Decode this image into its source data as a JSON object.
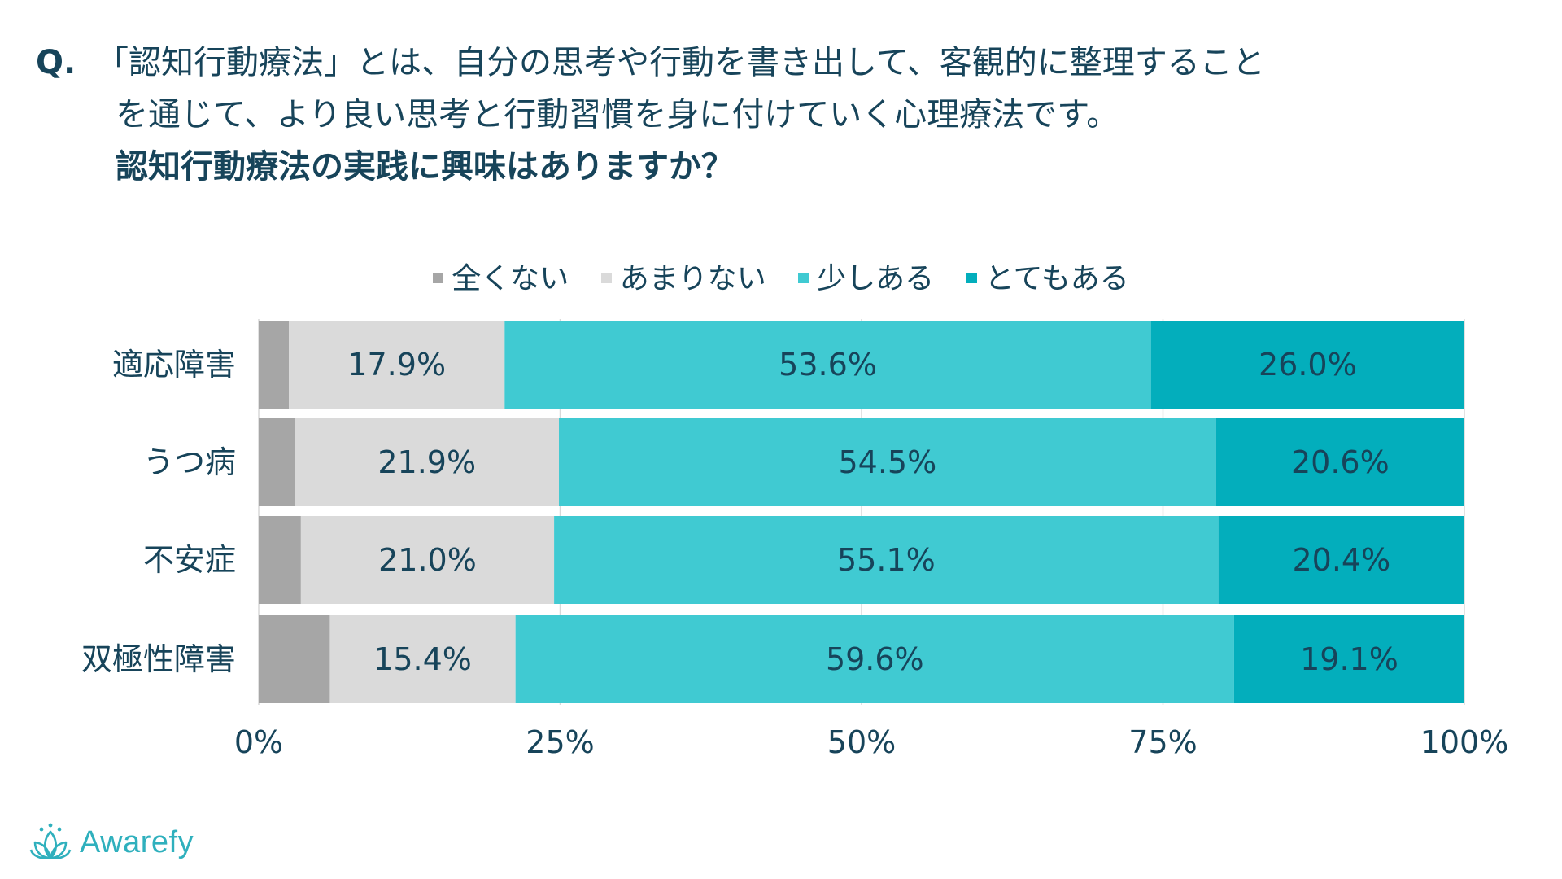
{
  "question": {
    "prefix": "Q.",
    "line1": "「認知行動療法」とは、自分の思考や行動を書き出して、客観的に整理すること",
    "line2": "を通じて、より良い思考と行動習慣を身に付けていく心理療法です。",
    "line3": "認知行動療法の実践に興味はありますか？"
  },
  "legend": [
    {
      "label": "全くない",
      "color": "#a6a6a6"
    },
    {
      "label": "あまりない",
      "color": "#dadada"
    },
    {
      "label": "少しある",
      "color": "#40cad2"
    },
    {
      "label": "とてもある",
      "color": "#03aebc"
    }
  ],
  "chart_data": {
    "type": "bar",
    "orientation": "horizontal",
    "stacked": "percent",
    "categories": [
      "適応障害",
      "うつ病",
      "不安症",
      "双極性障害"
    ],
    "series": [
      {
        "name": "全くない",
        "values": [
          2.5,
          3.0,
          3.5,
          5.9
        ],
        "labels": [
          "",
          "",
          "",
          ""
        ]
      },
      {
        "name": "あまりない",
        "values": [
          17.9,
          21.9,
          21.0,
          15.4
        ],
        "labels": [
          "17.9%",
          "21.9%",
          "21.0%",
          "15.4%"
        ]
      },
      {
        "name": "少しある",
        "values": [
          53.6,
          54.5,
          55.1,
          59.6
        ],
        "labels": [
          "53.6%",
          "54.5%",
          "55.1%",
          "59.6%"
        ]
      },
      {
        "name": "とてもある",
        "values": [
          26.0,
          20.6,
          20.4,
          19.1
        ],
        "labels": [
          "26.0%",
          "20.6%",
          "20.4%",
          "19.1%"
        ]
      }
    ],
    "xlim": [
      0,
      100
    ],
    "xticks": [
      "0%",
      "25%",
      "50%",
      "75%",
      "100%"
    ],
    "grid": true,
    "legend_position": "top-center"
  },
  "brand": {
    "name": "Awarefy",
    "color": "#2fb0bd"
  }
}
